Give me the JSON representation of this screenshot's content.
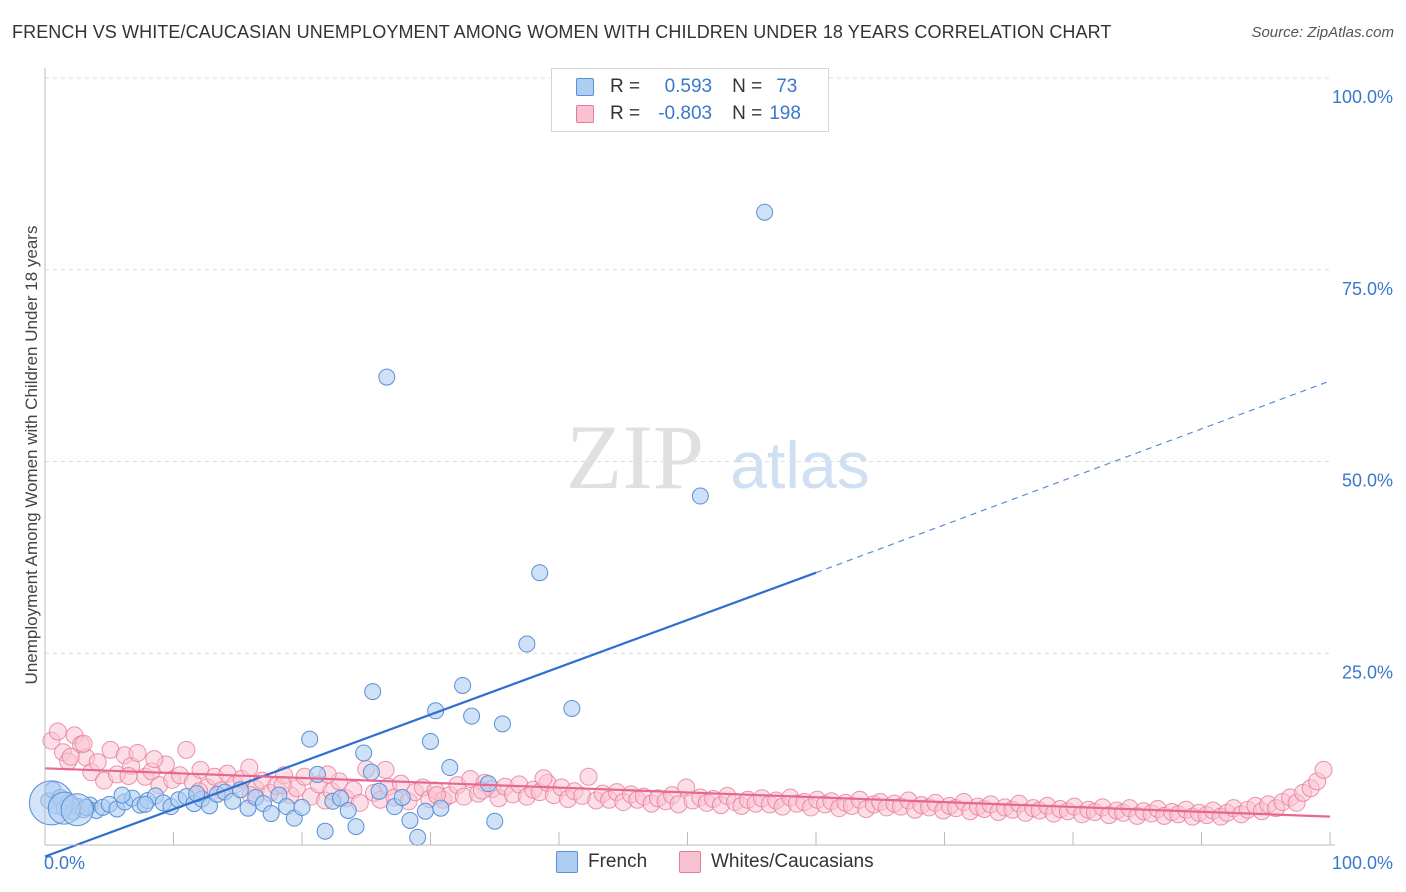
{
  "title": "FRENCH VS WHITE/CAUCASIAN UNEMPLOYMENT AMONG WOMEN WITH CHILDREN UNDER 18 YEARS CORRELATION CHART",
  "source": "Source: ZipAtlas.com",
  "watermark": {
    "zip": "ZIP",
    "atlas": "atlas"
  },
  "legend": {
    "series1": {
      "r_label": "R =",
      "r_value": "0.593",
      "n_label": "N =",
      "n_value": "73",
      "fill": "#aecdf2",
      "stroke": "#5b8fd6"
    },
    "series2": {
      "r_label": "R =",
      "r_value": "-0.803",
      "n_label": "N =",
      "n_value": "198",
      "fill": "#f9c2d1",
      "stroke": "#e77a9c"
    }
  },
  "chart_data": {
    "type": "scatter",
    "xlabel": "",
    "ylabel": "Unemployment Among Women with Children Under 18 years",
    "xlim": [
      0,
      100
    ],
    "ylim": [
      0,
      100
    ],
    "x_tick_labels": [
      "0.0%",
      "100.0%"
    ],
    "y_tick_labels": [
      "25.0%",
      "50.0%",
      "75.0%",
      "100.0%"
    ],
    "y_ticks": [
      25,
      50,
      75,
      100
    ],
    "grid": true,
    "series": [
      {
        "name": "French",
        "color": "#5b8fd6",
        "fill": "#aecdf2",
        "trend": {
          "x0": 0,
          "y0": -1.5,
          "x1": 60,
          "y1": 35.5,
          "dash_x_end": 100,
          "dash_y_end": 60.5,
          "line_color": "#2f6fd0"
        },
        "points": [
          [
            0.3,
            5.8
          ],
          [
            0.6,
            7.2
          ],
          [
            0.9,
            5.1
          ],
          [
            1.2,
            6.2
          ],
          [
            1.5,
            4.8
          ],
          [
            1.8,
            5.5
          ],
          [
            2.2,
            4.3
          ],
          [
            2.6,
            5.0
          ],
          [
            3.0,
            4.6
          ],
          [
            3.5,
            5.2
          ],
          [
            4.0,
            4.5
          ],
          [
            4.5,
            4.9
          ],
          [
            5.0,
            5.3
          ],
          [
            5.6,
            4.7
          ],
          [
            6.2,
            5.6
          ],
          [
            6.8,
            6.1
          ],
          [
            7.4,
            5.2
          ],
          [
            8.0,
            5.8
          ],
          [
            8.6,
            6.4
          ],
          [
            9.2,
            5.5
          ],
          [
            9.8,
            5.0
          ],
          [
            10.4,
            5.9
          ],
          [
            11.0,
            6.3
          ],
          [
            11.6,
            5.4
          ],
          [
            12.2,
            6.0
          ],
          [
            12.8,
            5.1
          ],
          [
            13.4,
            6.6
          ],
          [
            14.0,
            6.9
          ],
          [
            14.6,
            5.7
          ],
          [
            15.2,
            7.2
          ],
          [
            15.8,
            4.8
          ],
          [
            16.4,
            6.2
          ],
          [
            17.0,
            5.4
          ],
          [
            17.6,
            4.1
          ],
          [
            18.2,
            6.5
          ],
          [
            18.8,
            5.0
          ],
          [
            19.4,
            3.5
          ],
          [
            20.0,
            4.9
          ],
          [
            20.6,
            13.8
          ],
          [
            21.2,
            9.2
          ],
          [
            21.8,
            1.8
          ],
          [
            22.4,
            5.7
          ],
          [
            23.0,
            6.1
          ],
          [
            23.6,
            4.5
          ],
          [
            24.2,
            2.4
          ],
          [
            24.8,
            12.0
          ],
          [
            25.4,
            9.5
          ],
          [
            26.0,
            7.0
          ],
          [
            26.6,
            61.0
          ],
          [
            27.2,
            5.0
          ],
          [
            27.8,
            6.2
          ],
          [
            28.4,
            3.2
          ],
          [
            29.0,
            1.0
          ],
          [
            29.6,
            4.4
          ],
          [
            30.0,
            13.5
          ],
          [
            30.4,
            17.5
          ],
          [
            30.8,
            4.8
          ],
          [
            31.5,
            10.1
          ],
          [
            32.5,
            20.8
          ],
          [
            33.2,
            16.8
          ],
          [
            34.5,
            8.0
          ],
          [
            35.0,
            3.1
          ],
          [
            35.6,
            15.8
          ],
          [
            37.5,
            26.2
          ],
          [
            38.5,
            35.5
          ],
          [
            41.0,
            17.8
          ],
          [
            51.0,
            45.5
          ],
          [
            56.0,
            82.5
          ],
          [
            25.5,
            20.0
          ],
          [
            6.0,
            6.5
          ],
          [
            3.2,
            4.9
          ],
          [
            7.8,
            5.3
          ],
          [
            11.8,
            6.7
          ]
        ],
        "big_points": [
          [
            0.5,
            5.5
          ],
          [
            1.5,
            4.8
          ],
          [
            2.5,
            4.6
          ]
        ]
      },
      {
        "name": "Whites/Caucasians",
        "color": "#e77a9c",
        "fill": "#f9c2d1",
        "trend": {
          "x0": 0,
          "y0": 10.0,
          "x1": 100,
          "y1": 3.7,
          "line_color": "#e8678f"
        },
        "points": [
          [
            0.5,
            13.6
          ],
          [
            1.0,
            14.8
          ],
          [
            1.4,
            12.1
          ],
          [
            1.8,
            10.9
          ],
          [
            2.3,
            14.3
          ],
          [
            2.8,
            13.1
          ],
          [
            3.2,
            11.4
          ],
          [
            3.6,
            9.5
          ],
          [
            4.1,
            10.8
          ],
          [
            4.6,
            8.4
          ],
          [
            5.1,
            12.4
          ],
          [
            5.6,
            9.2
          ],
          [
            6.2,
            11.7
          ],
          [
            6.7,
            10.3
          ],
          [
            7.2,
            12.0
          ],
          [
            7.8,
            8.9
          ],
          [
            8.3,
            9.6
          ],
          [
            8.9,
            7.8
          ],
          [
            9.4,
            10.5
          ],
          [
            9.9,
            8.5
          ],
          [
            10.5,
            9.1
          ],
          [
            11.0,
            12.4
          ],
          [
            11.5,
            8.2
          ],
          [
            12.1,
            9.8
          ],
          [
            12.6,
            7.5
          ],
          [
            13.2,
            8.9
          ],
          [
            13.7,
            7.1
          ],
          [
            14.2,
            9.3
          ],
          [
            14.8,
            7.9
          ],
          [
            15.3,
            8.6
          ],
          [
            15.9,
            10.1
          ],
          [
            16.4,
            7.3
          ],
          [
            16.9,
            8.4
          ],
          [
            17.5,
            6.8
          ],
          [
            18.0,
            7.7
          ],
          [
            18.6,
            9.1
          ],
          [
            19.1,
            6.5
          ],
          [
            19.6,
            7.4
          ],
          [
            20.2,
            8.9
          ],
          [
            20.7,
            6.3
          ],
          [
            21.3,
            7.9
          ],
          [
            21.8,
            5.8
          ],
          [
            22.3,
            7.0
          ],
          [
            22.9,
            8.3
          ],
          [
            23.4,
            6.1
          ],
          [
            24.0,
            7.2
          ],
          [
            24.5,
            5.5
          ],
          [
            25.0,
            9.9
          ],
          [
            25.6,
            6.8
          ],
          [
            26.1,
            5.9
          ],
          [
            26.7,
            7.6
          ],
          [
            27.2,
            6.2
          ],
          [
            27.7,
            8.0
          ],
          [
            28.3,
            5.7
          ],
          [
            28.8,
            6.9
          ],
          [
            29.4,
            7.5
          ],
          [
            29.9,
            6.0
          ],
          [
            30.4,
            7.1
          ],
          [
            31.0,
            5.9
          ],
          [
            31.5,
            6.5
          ],
          [
            32.1,
            7.8
          ],
          [
            32.6,
            6.3
          ],
          [
            33.1,
            8.6
          ],
          [
            33.7,
            6.7
          ],
          [
            34.2,
            8.1
          ],
          [
            34.8,
            7.3
          ],
          [
            35.3,
            6.1
          ],
          [
            35.8,
            7.6
          ],
          [
            36.4,
            6.6
          ],
          [
            36.9,
            7.9
          ],
          [
            37.5,
            6.3
          ],
          [
            38.0,
            7.2
          ],
          [
            38.5,
            6.9
          ],
          [
            39.1,
            8.1
          ],
          [
            39.6,
            6.5
          ],
          [
            40.2,
            7.5
          ],
          [
            40.7,
            6.0
          ],
          [
            41.2,
            7.0
          ],
          [
            41.8,
            6.4
          ],
          [
            42.3,
            8.9
          ],
          [
            42.9,
            5.8
          ],
          [
            43.4,
            6.7
          ],
          [
            43.9,
            5.9
          ],
          [
            44.5,
            6.9
          ],
          [
            45.0,
            5.6
          ],
          [
            45.6,
            6.6
          ],
          [
            46.1,
            5.9
          ],
          [
            46.6,
            6.3
          ],
          [
            47.2,
            5.4
          ],
          [
            47.7,
            6.1
          ],
          [
            48.3,
            5.7
          ],
          [
            48.8,
            6.5
          ],
          [
            49.3,
            5.3
          ],
          [
            49.9,
            7.5
          ],
          [
            50.4,
            5.8
          ],
          [
            51.0,
            6.2
          ],
          [
            51.5,
            5.5
          ],
          [
            52.0,
            6.0
          ],
          [
            52.6,
            5.2
          ],
          [
            53.1,
            6.4
          ],
          [
            53.7,
            5.6
          ],
          [
            54.2,
            5.1
          ],
          [
            54.7,
            5.9
          ],
          [
            55.3,
            5.4
          ],
          [
            55.8,
            6.1
          ],
          [
            56.4,
            5.3
          ],
          [
            56.9,
            5.8
          ],
          [
            57.4,
            5.0
          ],
          [
            58.0,
            6.2
          ],
          [
            58.5,
            5.4
          ],
          [
            59.1,
            5.6
          ],
          [
            59.6,
            4.9
          ],
          [
            60.1,
            5.9
          ],
          [
            60.7,
            5.3
          ],
          [
            61.2,
            5.7
          ],
          [
            61.8,
            4.8
          ],
          [
            62.3,
            5.5
          ],
          [
            62.8,
            5.1
          ],
          [
            63.4,
            5.9
          ],
          [
            63.9,
            4.7
          ],
          [
            64.5,
            5.3
          ],
          [
            65.0,
            5.6
          ],
          [
            65.5,
            4.9
          ],
          [
            66.1,
            5.4
          ],
          [
            66.6,
            5.0
          ],
          [
            67.2,
            5.8
          ],
          [
            67.7,
            4.6
          ],
          [
            68.2,
            5.2
          ],
          [
            68.8,
            4.9
          ],
          [
            69.3,
            5.5
          ],
          [
            69.9,
            4.5
          ],
          [
            70.4,
            5.1
          ],
          [
            70.9,
            4.8
          ],
          [
            71.5,
            5.6
          ],
          [
            72.0,
            4.4
          ],
          [
            72.6,
            5.0
          ],
          [
            73.1,
            4.7
          ],
          [
            73.6,
            5.3
          ],
          [
            74.2,
            4.3
          ],
          [
            74.7,
            4.9
          ],
          [
            75.3,
            4.6
          ],
          [
            75.8,
            5.4
          ],
          [
            76.3,
            4.2
          ],
          [
            76.9,
            4.8
          ],
          [
            77.4,
            4.5
          ],
          [
            78.0,
            5.1
          ],
          [
            78.5,
            4.1
          ],
          [
            79.0,
            4.7
          ],
          [
            79.6,
            4.4
          ],
          [
            80.1,
            5.0
          ],
          [
            80.7,
            4.0
          ],
          [
            81.2,
            4.6
          ],
          [
            81.7,
            4.3
          ],
          [
            82.3,
            4.9
          ],
          [
            82.8,
            3.9
          ],
          [
            83.4,
            4.5
          ],
          [
            83.9,
            4.2
          ],
          [
            84.4,
            4.8
          ],
          [
            85.0,
            3.8
          ],
          [
            85.5,
            4.4
          ],
          [
            86.1,
            4.1
          ],
          [
            86.6,
            4.7
          ],
          [
            87.1,
            3.8
          ],
          [
            87.7,
            4.3
          ],
          [
            88.2,
            4.0
          ],
          [
            88.8,
            4.6
          ],
          [
            89.3,
            3.7
          ],
          [
            89.8,
            4.2
          ],
          [
            90.4,
            3.9
          ],
          [
            90.9,
            4.5
          ],
          [
            91.5,
            3.7
          ],
          [
            92.0,
            4.2
          ],
          [
            92.5,
            4.8
          ],
          [
            93.1,
            4.0
          ],
          [
            93.6,
            4.6
          ],
          [
            94.2,
            5.1
          ],
          [
            94.7,
            4.4
          ],
          [
            95.2,
            5.3
          ],
          [
            95.8,
            4.8
          ],
          [
            96.3,
            5.6
          ],
          [
            96.9,
            6.2
          ],
          [
            97.4,
            5.5
          ],
          [
            97.9,
            6.8
          ],
          [
            98.5,
            7.4
          ],
          [
            99.0,
            8.3
          ],
          [
            99.5,
            9.8
          ],
          [
            3.0,
            13.2
          ],
          [
            2.0,
            11.5
          ],
          [
            6.5,
            9.0
          ],
          [
            8.5,
            11.2
          ],
          [
            12.0,
            7.0
          ],
          [
            16.0,
            6.5
          ],
          [
            18.5,
            7.8
          ],
          [
            22.0,
            9.2
          ],
          [
            26.5,
            9.8
          ],
          [
            30.5,
            6.5
          ],
          [
            34.0,
            7.1
          ],
          [
            38.8,
            8.7
          ]
        ]
      }
    ]
  }
}
